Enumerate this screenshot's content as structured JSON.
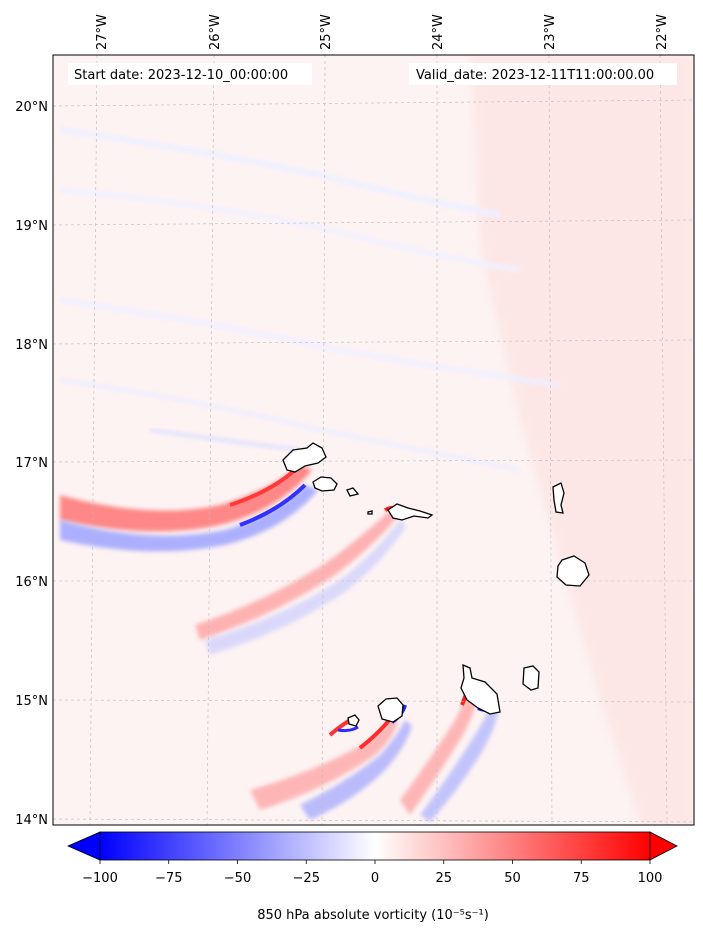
{
  "map": {
    "start_date_text": "Start date: 2023-12-10_00:00:00",
    "valid_date_text": "Valid_date: 2023-12-11T11:00:00.00",
    "lon_labels": [
      "27°W",
      "26°W",
      "25°W",
      "24°W",
      "23°W",
      "22°W"
    ],
    "lat_labels": [
      "20°N",
      "19°N",
      "18°N",
      "17°N",
      "16°N",
      "15°N",
      "14°N"
    ],
    "extent": {
      "lon_min": -27.33,
      "lon_max": -21.75,
      "lat_min": 13.94,
      "lat_max": 20.42
    },
    "background_color": "#fdf3f3"
  },
  "colorbar": {
    "ticks": [
      "−100",
      "−75",
      "−50",
      "−25",
      "0",
      "25",
      "50",
      "75",
      "100"
    ],
    "range": [
      -100,
      100
    ],
    "label": "850 hPa absolute vorticity (10$^{-5}$s$^{-1}$)",
    "label_display": "850 hPa absolute vorticity (10⁻⁵s⁻¹)",
    "colormap": "bwr",
    "extend": "both"
  }
}
